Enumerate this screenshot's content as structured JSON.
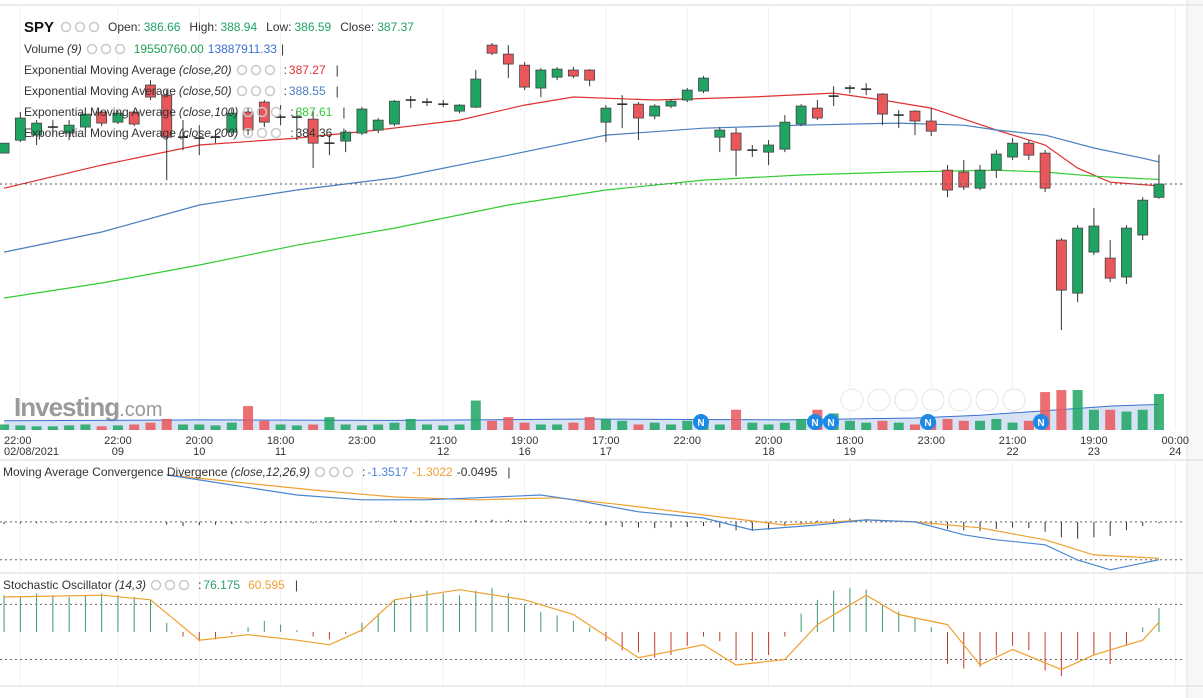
{
  "header": {
    "symbol": "SPY",
    "open_label": "Open:",
    "high_label": "High:",
    "low_label": "Low:",
    "close_label": "Close:",
    "colon": ":",
    "bar": "|",
    "news_marker": "N",
    "watermark": [
      "Investing",
      ".com"
    ]
  },
  "chart_data": [
    {
      "type": "candlestick",
      "name": "SPY",
      "xlim": [
        -0.25,
        72.6
      ],
      "ylim": [
        374.25,
        396.92
      ],
      "grid": true,
      "up_color": "#1fa463",
      "down_color": "#e9575b",
      "xticks": [
        {
          "value": 1,
          "label": "22:00",
          "date": "02/08/2021"
        },
        {
          "value": 7,
          "label": "22:00",
          "date": "09"
        },
        {
          "value": 12,
          "label": "20:00",
          "date": "10"
        },
        {
          "value": 17,
          "label": "18:00",
          "date": "11"
        },
        {
          "value": 22,
          "label": "23:00"
        },
        {
          "value": 27,
          "label": "21:00",
          "date": "12"
        },
        {
          "value": 32,
          "label": "19:00",
          "date": "16"
        },
        {
          "value": 37,
          "label": "17:00",
          "date": "17"
        },
        {
          "value": 42,
          "label": "22:00"
        },
        {
          "value": 47,
          "label": "20:00",
          "date": "18"
        },
        {
          "value": 52,
          "label": "18:00",
          "date": "19"
        },
        {
          "value": 57,
          "label": "23:00"
        },
        {
          "value": 62,
          "label": "21:00",
          "date": "22"
        },
        {
          "value": 67,
          "label": "19:00",
          "date": "23"
        },
        {
          "value": 72,
          "label": "00:00",
          "date": "24"
        }
      ],
      "open": [
        389.02,
        389.71,
        389.98,
        390.41,
        390.09,
        390.41,
        391.21,
        390.67,
        391.21,
        392.65,
        392.11,
        389.87,
        389.82,
        389.87,
        390.14,
        391.21,
        391.74,
        390.94,
        390.94,
        390.83,
        389.55,
        389.66,
        390.09,
        390.25,
        390.57,
        391.85,
        391.74,
        391.63,
        391.26,
        391.47,
        394.78,
        394.3,
        393.71,
        392.49,
        393.07,
        393.45,
        393.45,
        390.67,
        391.63,
        391.63,
        391.0,
        391.53,
        391.85,
        392.33,
        389.87,
        390.09,
        389.18,
        389.07,
        389.23,
        390.57,
        391.42,
        392.06,
        392.49,
        392.43,
        392.17,
        391.05,
        391.26,
        390.73,
        388.11,
        388.01,
        387.15,
        388.11,
        388.81,
        389.55,
        389.02,
        384.38,
        381.55,
        383.74,
        383.42,
        382.41,
        384.65,
        386.66
      ],
      "high": [
        389.55,
        391.21,
        390.78,
        390.78,
        390.78,
        391.15,
        391.31,
        391.26,
        391.31,
        392.91,
        392.38,
        390.78,
        390.51,
        390.25,
        391.37,
        391.47,
        391.85,
        391.58,
        391.31,
        391.31,
        389.98,
        390.25,
        391.47,
        390.89,
        391.85,
        392.06,
        391.95,
        391.85,
        391.63,
        393.45,
        394.89,
        394.78,
        393.87,
        393.55,
        393.61,
        393.61,
        393.5,
        391.58,
        392.11,
        391.74,
        391.63,
        391.9,
        392.49,
        393.13,
        390.41,
        390.35,
        389.45,
        389.71,
        391.05,
        391.63,
        391.85,
        392.59,
        392.65,
        392.75,
        392.22,
        391.31,
        391.31,
        391.42,
        388.38,
        388.65,
        388.38,
        389.18,
        389.82,
        389.71,
        389.18,
        384.49,
        385.18,
        386.09,
        384.38,
        385.18,
        386.67,
        388.94
      ],
      "low": [
        389.02,
        389.61,
        389.45,
        389.98,
        389.71,
        390.3,
        390.46,
        390.57,
        390.46,
        391.85,
        387.58,
        389.18,
        388.91,
        389.55,
        389.93,
        389.98,
        390.41,
        390.51,
        389.71,
        388.22,
        388.91,
        389.07,
        389.98,
        390.09,
        390.46,
        391.42,
        391.53,
        391.47,
        391.15,
        391.42,
        394.25,
        393.02,
        392.38,
        392.01,
        392.91,
        393.02,
        392.59,
        389.61,
        390.35,
        389.71,
        390.83,
        391.42,
        391.74,
        392.22,
        389.07,
        387.79,
        388.81,
        388.38,
        389.07,
        390.46,
        390.78,
        391.53,
        392.22,
        392.11,
        390.51,
        390.35,
        389.98,
        389.93,
        386.67,
        387.05,
        387.05,
        387.69,
        388.65,
        388.65,
        386.94,
        379.58,
        381.07,
        383.58,
        382.14,
        382.03,
        384.38,
        386.59
      ],
      "close": [
        389.55,
        390.89,
        390.62,
        390.41,
        390.51,
        391.1,
        390.62,
        391.15,
        390.57,
        392.01,
        389.87,
        389.87,
        389.82,
        389.87,
        391.15,
        390.25,
        390.67,
        390.94,
        390.94,
        389.55,
        389.55,
        390.14,
        391.37,
        390.78,
        391.79,
        391.85,
        391.74,
        391.63,
        391.58,
        392.97,
        394.35,
        393.77,
        392.54,
        393.45,
        393.5,
        393.13,
        392.91,
        391.42,
        391.63,
        390.89,
        391.53,
        391.79,
        392.38,
        393.02,
        390.25,
        389.18,
        389.18,
        389.45,
        390.67,
        391.53,
        390.89,
        392.06,
        392.49,
        392.43,
        391.1,
        391.05,
        390.73,
        390.19,
        387.05,
        387.21,
        388.11,
        388.97,
        389.55,
        388.91,
        387.15,
        381.71,
        385.02,
        385.13,
        382.35,
        385.02,
        386.51,
        387.37
      ],
      "overlays": [
        {
          "name": "Exponential Moving Average",
          "params": "(close,20)",
          "color": "#e0302f",
          "x": [
            0,
            6,
            12,
            18,
            23,
            28,
            32,
            35,
            40,
            46,
            51,
            54,
            57,
            61,
            64,
            66,
            68,
            71
          ],
          "values": [
            387.15,
            388.38,
            389.45,
            389.82,
            390.25,
            390.78,
            391.58,
            392.01,
            391.85,
            392.01,
            392.22,
            391.85,
            391.42,
            390.25,
            389.45,
            388.22,
            387.47,
            387.27
          ]
        },
        {
          "name": "Exponential Moving Average",
          "params": "(close,50)",
          "color": "#4a7fc1",
          "x": [
            0,
            6,
            12,
            18,
            24,
            31,
            37,
            43,
            49,
            55,
            59,
            61,
            64,
            67,
            70,
            71
          ],
          "values": [
            383.74,
            384.81,
            386.25,
            387.05,
            387.69,
            388.91,
            389.98,
            390.35,
            390.51,
            390.62,
            390.51,
            390.25,
            389.98,
            389.29,
            388.75,
            388.55
          ]
        },
        {
          "name": "Exponential Moving Average",
          "params": "(close,100)",
          "color": "#33cc33",
          "x": [
            0,
            6,
            12,
            18,
            24,
            31,
            37,
            43,
            49,
            55,
            61,
            64,
            67,
            71
          ],
          "values": [
            381.29,
            382.09,
            383.05,
            384.11,
            385.02,
            386.25,
            387.05,
            387.58,
            387.85,
            388.01,
            388.11,
            388.01,
            387.79,
            387.61
          ]
        },
        {
          "name": "Exponential Moving Average",
          "params": "(close,200)",
          "color": "#333333",
          "visible": false,
          "value": 384.36
        }
      ],
      "volume": {
        "name": "Volume",
        "params": "(9)",
        "color_up": "#1fa463",
        "color_down": "#e9575b",
        "ylim": [
          0,
          230800000
        ],
        "values": [
          3000000,
          2500000,
          2000000,
          2000000,
          2500000,
          3000000,
          2000000,
          2500000,
          3000000,
          4000000,
          6000000,
          3000000,
          3000000,
          2500000,
          4000000,
          13000000,
          5000000,
          3000000,
          2500000,
          3000000,
          7000000,
          3000000,
          2500000,
          3000000,
          4000000,
          6000000,
          3000000,
          2500000,
          3000000,
          16000000,
          5000000,
          7000000,
          4000000,
          3000000,
          3000000,
          4000000,
          7000000,
          6000000,
          5000000,
          3000000,
          4000000,
          3000000,
          5000000,
          4000000,
          3000000,
          11000000,
          4000000,
          3000000,
          4000000,
          6000000,
          11000000,
          9000000,
          5000000,
          4000000,
          5000000,
          4000000,
          3000000,
          4000000,
          6000000,
          5000000,
          5000000,
          6000000,
          4000000,
          5000000,
          20600000,
          21700000,
          21700000,
          11000000,
          11000000,
          10000000,
          11000000,
          19550760
        ],
        "value_labels": [
          null,
          null,
          null,
          null,
          null,
          null,
          null,
          null,
          null,
          null,
          null,
          null,
          null,
          null,
          null,
          null,
          null,
          null,
          null,
          null,
          null,
          null,
          null,
          null,
          null,
          null,
          null,
          null,
          null,
          null,
          null,
          null,
          null,
          null,
          null,
          null,
          null,
          null,
          null,
          null,
          null,
          null,
          null,
          null,
          null,
          null,
          null,
          null,
          null,
          null,
          null,
          null,
          null,
          null,
          null,
          null,
          null,
          null,
          null,
          null,
          null,
          null,
          null,
          null,
          null,
          null,
          null,
          null,
          null,
          null,
          null,
          "19550760.00"
        ],
        "label_color": "#1f9d55",
        "ma": {
          "color": "#3a6fd1",
          "x": [
            0,
            12,
            24,
            36,
            48,
            56,
            60,
            64,
            68,
            71
          ],
          "values": [
            5000000,
            5500000,
            5200000,
            6000000,
            5500000,
            6500000,
            8000000,
            10500000,
            13000000,
            13887911.33
          ]
        }
      }
    },
    {
      "type": "macd",
      "name": "Moving Average Convergence Divergence",
      "params": "(close,12,26,9)",
      "ylim": [
        -1.79,
        2.14
      ],
      "levels": [
        0
      ],
      "macd": {
        "color": "#4a86d4",
        "x": [
          10,
          12,
          16,
          18,
          22,
          26,
          29,
          33,
          35,
          39,
          43,
          46,
          50,
          53,
          56,
          59,
          61,
          64,
          66,
          68,
          71
        ],
        "values": [
          1.68,
          1.5,
          1.14,
          0.96,
          0.79,
          0.79,
          0.86,
          0.96,
          0.79,
          0.36,
          0.14,
          -0.29,
          -0.11,
          0.07,
          0.0,
          -0.46,
          -0.64,
          -0.82,
          -1.36,
          -1.71,
          -1.3517
        ]
      },
      "signal": {
        "color": "#f0a030",
        "x": [
          10,
          16,
          19,
          24,
          29,
          34,
          38,
          43,
          48,
          53,
          56,
          60,
          64,
          67,
          71
        ],
        "values": [
          1.68,
          1.32,
          1.14,
          0.89,
          0.79,
          0.86,
          0.61,
          0.25,
          -0.11,
          0.07,
          0.0,
          -0.21,
          -0.64,
          -1.18,
          -1.3022
        ]
      },
      "histogram": {
        "color": "#333333",
        "values": [
          -0.08,
          -0.06,
          -0.05,
          -0.05,
          -0.04,
          -0.03,
          -0.03,
          -0.03,
          -0.02,
          -0.02,
          -0.1,
          -0.15,
          -0.12,
          -0.1,
          -0.08,
          -0.05,
          -0.04,
          -0.03,
          -0.03,
          -0.05,
          -0.04,
          -0.02,
          0.02,
          0.04,
          0.05,
          0.06,
          0.05,
          0.04,
          0.03,
          0.06,
          0.08,
          0.07,
          0.05,
          0.03,
          0.01,
          -0.02,
          -0.06,
          -0.12,
          -0.18,
          -0.2,
          -0.22,
          -0.2,
          -0.18,
          -0.15,
          -0.2,
          -0.3,
          -0.32,
          -0.28,
          -0.15,
          -0.05,
          0.05,
          0.1,
          0.12,
          0.1,
          0.05,
          0.02,
          -0.02,
          -0.1,
          -0.25,
          -0.3,
          -0.32,
          -0.25,
          -0.2,
          -0.22,
          -0.35,
          -0.55,
          -0.6,
          -0.55,
          -0.5,
          -0.3,
          -0.15,
          -0.0495
        ]
      }
    },
    {
      "type": "stochastic",
      "name": "Stochastic Oscillator",
      "params": "(14,3)",
      "ylim": [
        -11,
        112
      ],
      "levels": [
        20,
        80
      ],
      "histogram_base": 50,
      "up_color": "#3a9a6a",
      "down_color": "#c0392b",
      "k": {
        "color": "#2e9e6b",
        "values": [
          90,
          88,
          92,
          90,
          88,
          90,
          92,
          90,
          88,
          85,
          60,
          45,
          40,
          42,
          48,
          55,
          62,
          58,
          52,
          45,
          42,
          48,
          60,
          70,
          85,
          92,
          95,
          92,
          90,
          95,
          98,
          92,
          80,
          72,
          68,
          62,
          55,
          40,
          30,
          28,
          22,
          25,
          35,
          45,
          40,
          20,
          18,
          25,
          45,
          70,
          85,
          95,
          98,
          96,
          80,
          72,
          65,
          55,
          15,
          10,
          12,
          25,
          35,
          30,
          8,
          2,
          20,
          25,
          15,
          35,
          55,
          76.175
        ]
      },
      "d": {
        "color": "#f0a030",
        "x": [
          0,
          6,
          9,
          12,
          15,
          18,
          20,
          22,
          24,
          28,
          32,
          35,
          39,
          43,
          45,
          48,
          50,
          53,
          55,
          58,
          60,
          62,
          65,
          67,
          70,
          71
        ],
        "values": [
          88,
          90,
          85,
          41,
          47,
          41,
          36,
          52,
          85,
          96,
          85,
          69,
          22,
          36,
          14,
          20,
          58,
          90,
          69,
          58,
          14,
          31,
          9,
          25,
          41,
          60.595
        ]
      }
    }
  ]
}
